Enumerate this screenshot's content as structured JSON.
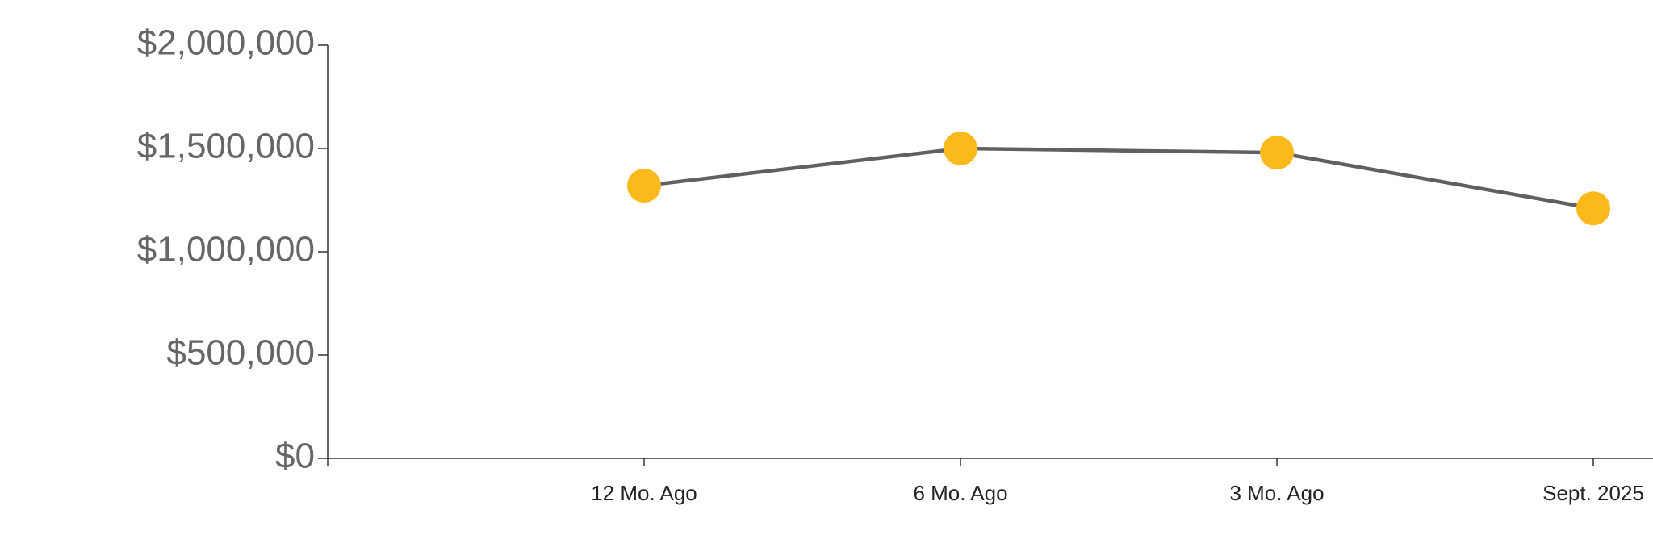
{
  "chart_data": {
    "type": "line",
    "categories": [
      null,
      "12 Mo. Ago",
      "6 Mo. Ago",
      "3 Mo. Ago",
      "Sept. 2025"
    ],
    "series": [
      {
        "name": null,
        "color": "#606060",
        "marker_color": "#fbb91c",
        "values": [
          null,
          1320000,
          1500000,
          1480000,
          1210000
        ]
      }
    ],
    "ylim": [
      0,
      2000000
    ],
    "yticks": [
      {
        "value": 0,
        "label": "$0"
      },
      {
        "value": 500000,
        "label": "$500,000"
      },
      {
        "value": 1000000,
        "label": "$1,000,000"
      },
      {
        "value": 1500000,
        "label": "$1,500,000"
      },
      {
        "value": 2000000,
        "label": "$2,000,000"
      }
    ]
  }
}
